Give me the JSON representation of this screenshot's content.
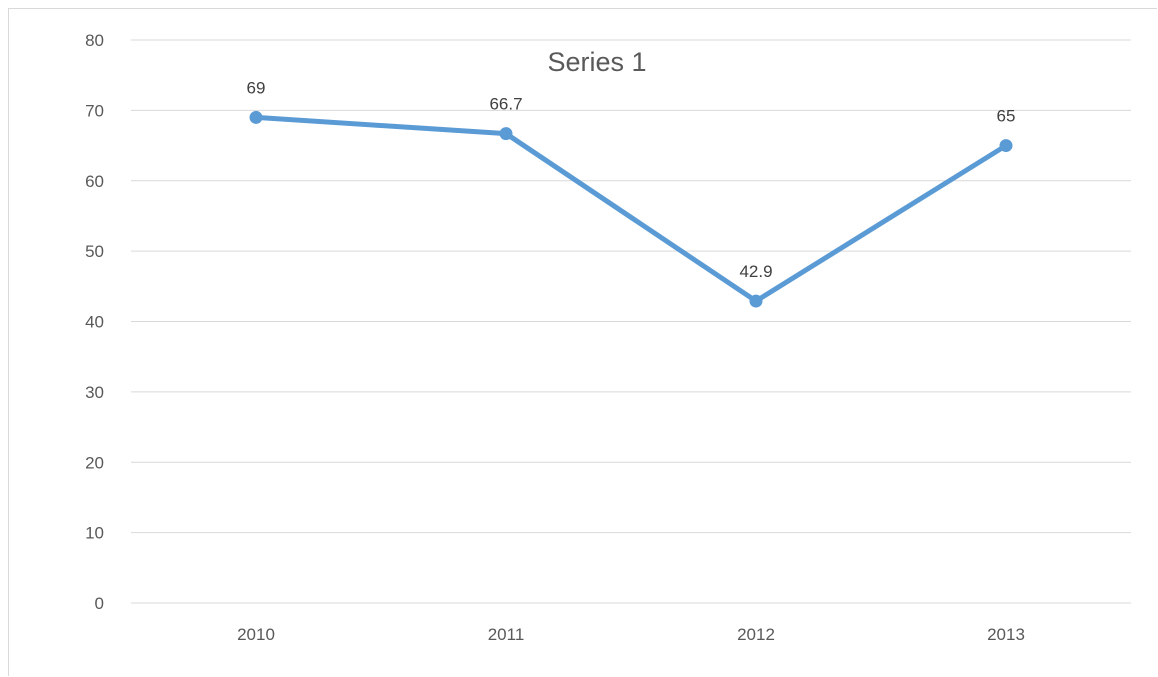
{
  "chart_data": {
    "type": "line",
    "title": "Series 1",
    "xlabel": "",
    "ylabel": "",
    "categories": [
      "2010",
      "2011",
      "2012",
      "2013"
    ],
    "series": [
      {
        "name": "Series 1",
        "values": [
          69,
          66.7,
          42.9,
          65
        ],
        "color": "#5b9bd5"
      }
    ],
    "data_labels": [
      "69",
      "66.7",
      "42.9",
      "65"
    ],
    "ylim": [
      0,
      80
    ],
    "yticks": [
      0,
      10,
      20,
      30,
      40,
      50,
      60,
      70,
      80
    ],
    "ytick_labels": [
      "0",
      "10",
      "20",
      "30",
      "40",
      "50",
      "60",
      "70",
      "80"
    ],
    "grid": true,
    "legend": "none"
  },
  "colors": {
    "gridline": "#d9d9d9",
    "axis_text": "#595959",
    "series": "#5b9bd5"
  }
}
